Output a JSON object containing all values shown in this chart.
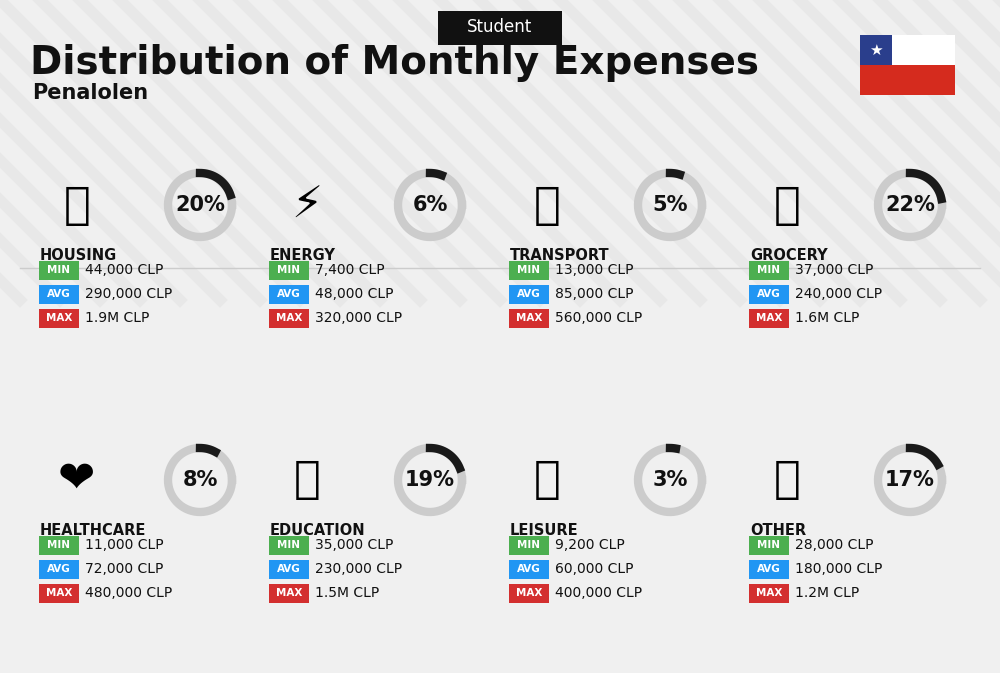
{
  "title": "Distribution of Monthly Expenses",
  "subtitle": "Student",
  "location": "Penalolen",
  "bg_color": "#f0f0f0",
  "categories": [
    {
      "name": "HOUSING",
      "pct": 20,
      "min": "44,000 CLP",
      "avg": "290,000 CLP",
      "max": "1.9M CLP",
      "icon_color": "#2196F3",
      "col": 0,
      "row": 0
    },
    {
      "name": "ENERGY",
      "pct": 6,
      "min": "7,400 CLP",
      "avg": "48,000 CLP",
      "max": "320,000 CLP",
      "icon_color": "#FF9800",
      "col": 1,
      "row": 0
    },
    {
      "name": "TRANSPORT",
      "pct": 5,
      "min": "13,000 CLP",
      "avg": "85,000 CLP",
      "max": "560,000 CLP",
      "icon_color": "#4CAF50",
      "col": 2,
      "row": 0
    },
    {
      "name": "GROCERY",
      "pct": 22,
      "min": "37,000 CLP",
      "avg": "240,000 CLP",
      "max": "1.6M CLP",
      "icon_color": "#8BC34A",
      "col": 3,
      "row": 0
    },
    {
      "name": "HEALTHCARE",
      "pct": 8,
      "min": "11,000 CLP",
      "avg": "72,000 CLP",
      "max": "480,000 CLP",
      "icon_color": "#E91E63",
      "col": 0,
      "row": 1
    },
    {
      "name": "EDUCATION",
      "pct": 19,
      "min": "35,000 CLP",
      "avg": "230,000 CLP",
      "max": "1.5M CLP",
      "icon_color": "#3F51B5",
      "col": 1,
      "row": 1
    },
    {
      "name": "LEISURE",
      "pct": 3,
      "min": "9,200 CLP",
      "avg": "60,000 CLP",
      "max": "400,000 CLP",
      "icon_color": "#FF5722",
      "col": 2,
      "row": 1
    },
    {
      "name": "OTHER",
      "pct": 17,
      "min": "28,000 CLP",
      "avg": "180,000 CLP",
      "max": "1.2M CLP",
      "icon_color": "#795548",
      "col": 3,
      "row": 1
    }
  ],
  "min_color": "#4CAF50",
  "avg_color": "#2196F3",
  "max_color": "#D32F2F",
  "label_color": "#ffffff",
  "arc_color_filled": "#1a1a1a",
  "arc_color_empty": "#cccccc",
  "title_fontsize": 28,
  "subtitle_fontsize": 11,
  "category_fontsize": 11,
  "pct_fontsize": 18,
  "value_fontsize": 10
}
